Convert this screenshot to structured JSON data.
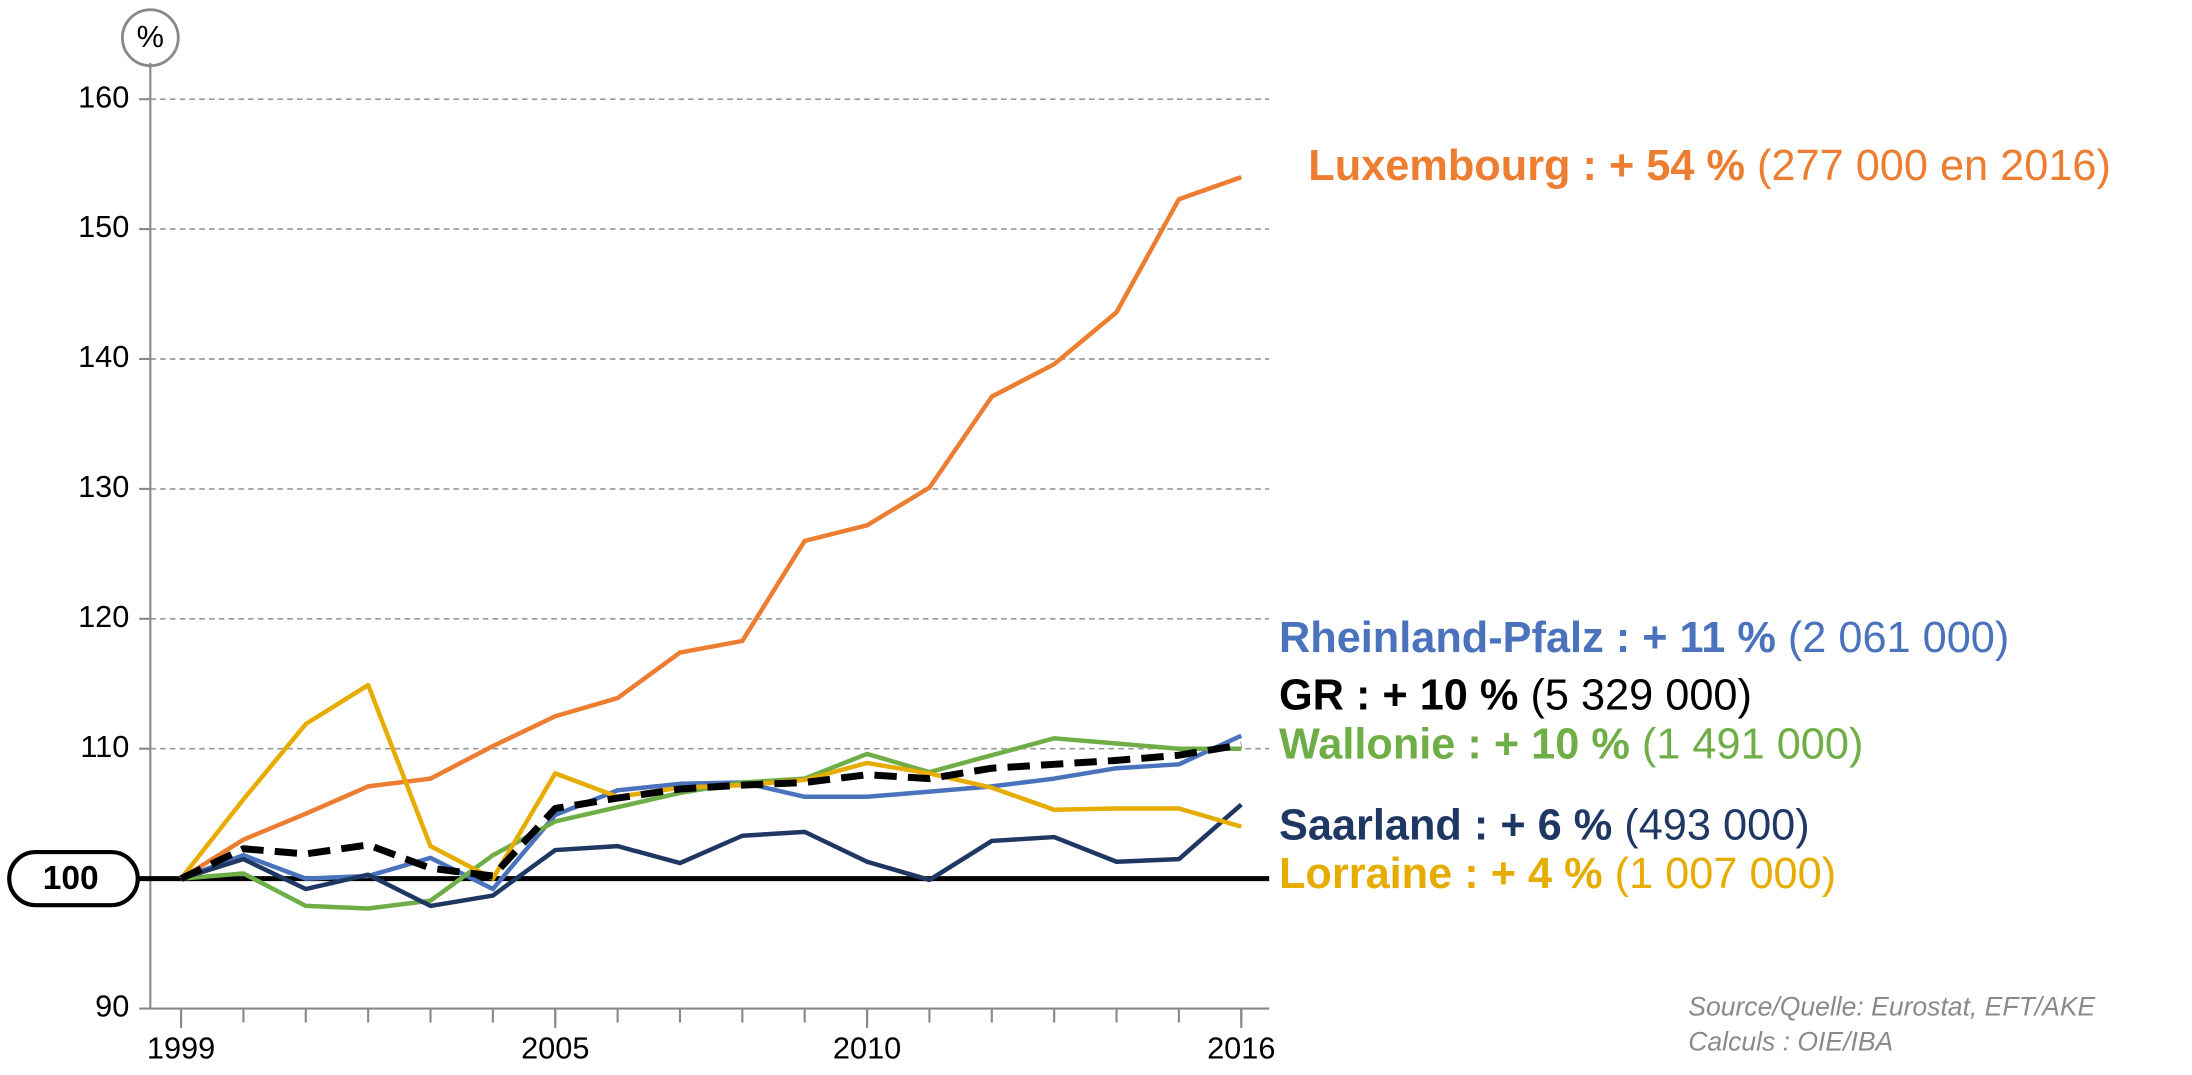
{
  "chart_data": {
    "type": "line",
    "y_axis_label": "%",
    "x": [
      1999,
      2000,
      2001,
      2002,
      2003,
      2004,
      2005,
      2006,
      2007,
      2008,
      2009,
      2010,
      2011,
      2012,
      2013,
      2014,
      2015,
      2016
    ],
    "xlim": [
      1999,
      2016
    ],
    "xticks": [
      1999,
      2005,
      2010,
      2016
    ],
    "ylim": [
      90,
      160
    ],
    "yticks": [
      90,
      100,
      110,
      120,
      130,
      140,
      150,
      160
    ],
    "grid": true,
    "baseline": 100,
    "series": [
      {
        "name": "Luxembourg : + 54 %",
        "annotation": "(277 000 en 2016)",
        "color": "#ed7d31",
        "values": [
          100,
          103,
          105,
          107.1,
          107.7,
          110.2,
          112.5,
          113.9,
          117.4,
          118.3,
          126,
          127.2,
          130.1,
          137.1,
          139.6,
          143.6,
          152.3,
          154
        ]
      },
      {
        "name": "Rheinland-Pfalz : + 11 %",
        "annotation": "(2 061 000)",
        "color": "#4a72bd",
        "values": [
          100,
          101.8,
          100,
          100.2,
          101.6,
          99.2,
          104.9,
          106.8,
          107.3,
          107.4,
          106.3,
          106.3,
          106.7,
          107.1,
          107.7,
          108.5,
          108.8,
          111
        ]
      },
      {
        "name": "GR : + 10 %",
        "annotation": "(5 329 000)",
        "color": "#000000",
        "dashed": true,
        "values": [
          100,
          102.3,
          101.9,
          102.6,
          100.8,
          100.2,
          105.4,
          106.2,
          106.9,
          107.2,
          107.4,
          108,
          107.7,
          108.5,
          108.8,
          109.1,
          109.5,
          110.3
        ]
      },
      {
        "name": "Wallonie : + 10 %",
        "annotation": "(1 491 000)",
        "color": "#6fad47",
        "values": [
          100,
          100.4,
          97.9,
          97.7,
          98.3,
          101.8,
          104.4,
          105.5,
          106.6,
          107.4,
          107.7,
          109.6,
          108.2,
          109.5,
          110.8,
          110.4,
          110,
          110
        ]
      },
      {
        "name": "Saarland : + 6 %",
        "annotation": "(493 000)",
        "color": "#1f3763",
        "values": [
          100,
          101.5,
          99.2,
          100.3,
          97.9,
          98.7,
          102.2,
          102.5,
          101.2,
          103.3,
          103.6,
          101.3,
          99.9,
          102.9,
          103.2,
          101.3,
          101.5,
          105.7
        ]
      },
      {
        "name": "Lorraine : + 4 %",
        "annotation": "(1 007 000)",
        "color": "#e6ac00",
        "values": [
          100,
          106.1,
          111.9,
          114.9,
          102.5,
          100,
          108.1,
          106.3,
          107,
          107.2,
          107.6,
          108.9,
          108.1,
          107,
          105.3,
          105.4,
          105.4,
          104
        ]
      }
    ],
    "source": [
      "Source/Quelle: Eurostat, EFT/AKE",
      "Calculs : OIE/IBA"
    ]
  }
}
